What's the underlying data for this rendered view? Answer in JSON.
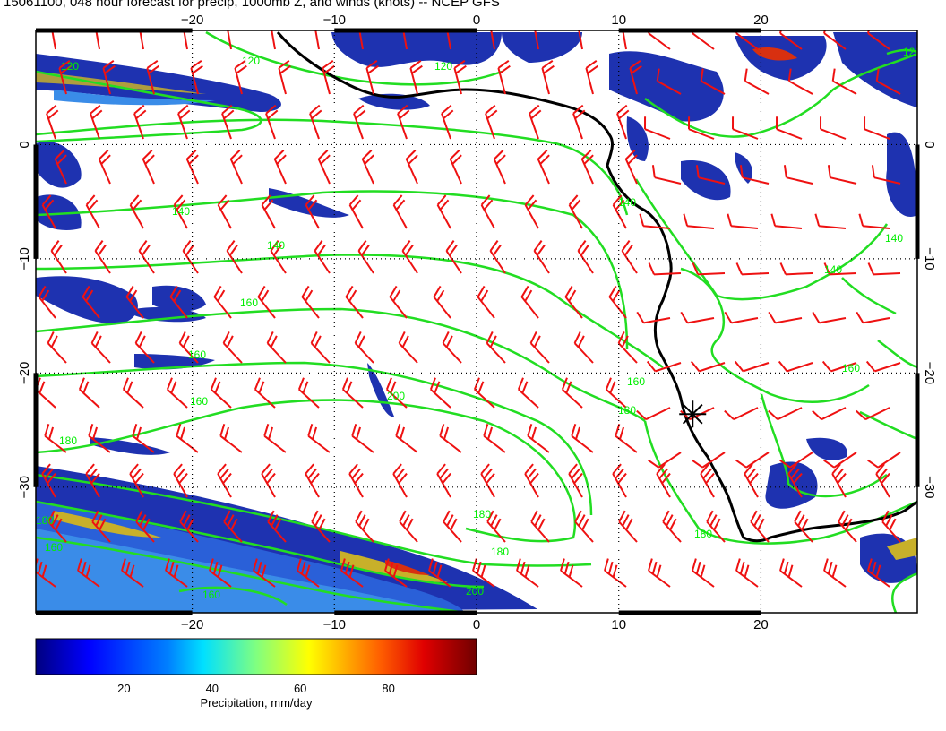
{
  "title": "15061100, 048 hour forecast for precip, 1000mb Z, and winds (knots) -- NCEP GFS",
  "map": {
    "lon_range": [
      -31,
      31
    ],
    "lat_range": [
      -41,
      10
    ],
    "lon_ticks": [
      -20,
      -10,
      0,
      10,
      20
    ],
    "lat_ticks": [
      0,
      -10,
      -20,
      -30
    ],
    "lon_tick_labels": [
      "−20",
      "−10",
      "0",
      "10",
      "20"
    ],
    "lat_tick_labels": [
      "0",
      "−10",
      "−20",
      "−30"
    ],
    "gridlines": true,
    "colors": {
      "coast": "#000000",
      "contour": "#22dd22",
      "barb": "#ee1111",
      "precip_low": "#1a2aa8",
      "precip_mid": "#3a7ae0",
      "precip_high": "#d0c020"
    }
  },
  "contour_labels": [
    "120",
    "120",
    "120",
    "140",
    "140",
    "160",
    "160",
    "160",
    "180",
    "180",
    "180",
    "200",
    "120",
    "140",
    "140",
    "160",
    "160",
    "180",
    "180",
    "200",
    "160",
    "140",
    "160",
    "180"
  ],
  "marker": {
    "name": "location-star",
    "lon": 15.2,
    "lat": -23.6
  },
  "colorbar": {
    "ticks": [
      "20",
      "40",
      "60",
      "80"
    ],
    "tick_values": [
      20,
      40,
      60,
      80
    ],
    "range": [
      0,
      100
    ],
    "label": "Precipitation, mm/day",
    "colors": [
      "#000080",
      "#0000ff",
      "#0080ff",
      "#00ffff",
      "#80ff80",
      "#ffff00",
      "#ff8000",
      "#ff0000",
      "#800000"
    ]
  }
}
